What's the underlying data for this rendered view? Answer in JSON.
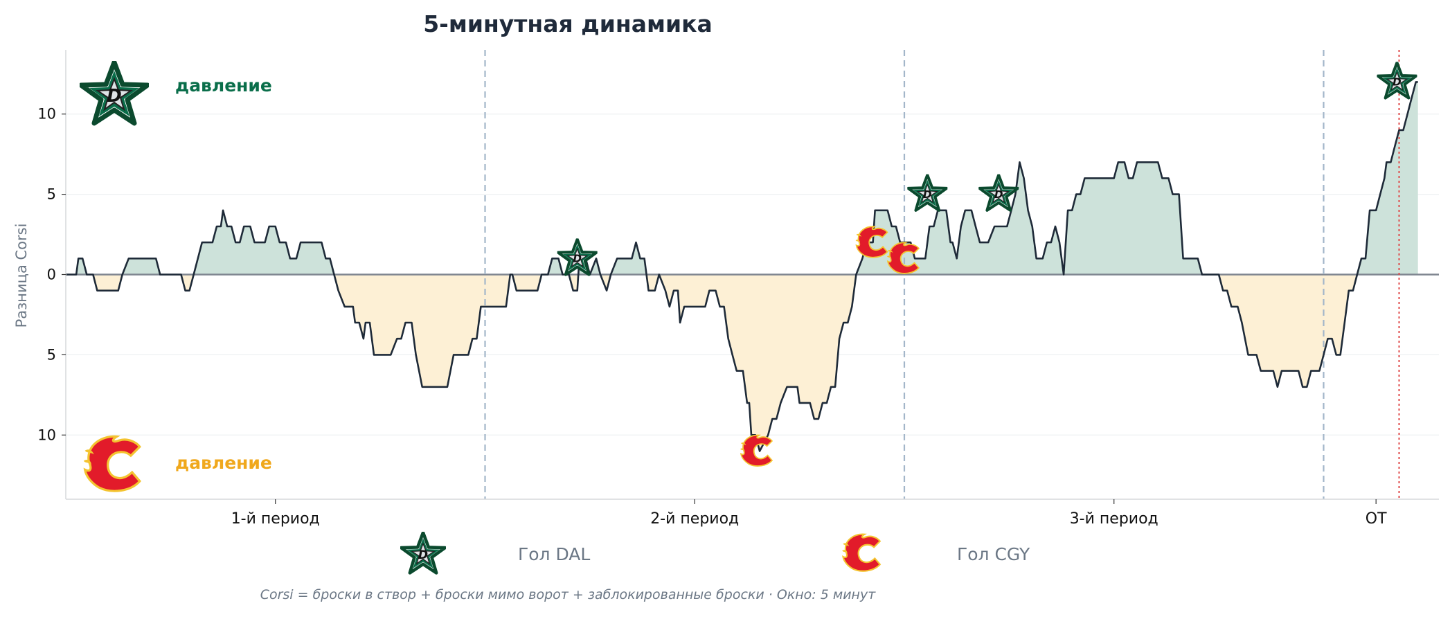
{
  "chart_data": {
    "type": "area",
    "title": "5-минутная динамика",
    "ylabel": "Разница Corsi",
    "ylim": [
      -14,
      14
    ],
    "yticks": [
      {
        "value": 10,
        "label": "10"
      },
      {
        "value": 5,
        "label": "5"
      },
      {
        "value": 0,
        "label": "0"
      },
      {
        "value": -5,
        "label": "5"
      },
      {
        "value": -10,
        "label": "10"
      }
    ],
    "xlim": [
      0,
      65.5
    ],
    "period_labels": [
      {
        "x": 10,
        "label": "1-й период"
      },
      {
        "x": 30,
        "label": "2-й период"
      },
      {
        "x": 50,
        "label": "3-й период"
      },
      {
        "x": 62.5,
        "label": "OT"
      }
    ],
    "period_separators": [
      20,
      40,
      60
    ],
    "game_end": 63.6,
    "grid": true,
    "positive_fill": "#cde2da",
    "negative_fill": "#fdf0d5",
    "line_color": "#1e2a38",
    "separator_color": "#a3b6c9",
    "end_line_color": "#e04848",
    "team_top": {
      "abbr": "DAL",
      "label": "давление",
      "color": "#0a6e4a",
      "logo": "dallas-stars-star-icon"
    },
    "team_bottom": {
      "abbr": "CGY",
      "label": "давление",
      "color": "#f0a81c",
      "logo": "calgary-flames-c-icon"
    },
    "series": [
      {
        "values": [
          [
            0.0,
            0
          ],
          [
            0.5,
            0
          ],
          [
            0.6,
            1
          ],
          [
            0.8,
            1
          ],
          [
            1.0,
            0
          ],
          [
            1.3,
            0
          ],
          [
            1.5,
            -1
          ],
          [
            2.5,
            -1
          ],
          [
            2.7,
            0
          ],
          [
            3.0,
            1
          ],
          [
            4.3,
            1
          ],
          [
            4.5,
            0
          ],
          [
            5.5,
            0
          ],
          [
            5.7,
            -1
          ],
          [
            5.9,
            -1
          ],
          [
            6.1,
            0
          ],
          [
            6.5,
            2
          ],
          [
            7.0,
            2
          ],
          [
            7.2,
            3
          ],
          [
            7.4,
            3
          ],
          [
            7.5,
            4
          ],
          [
            7.7,
            3
          ],
          [
            7.9,
            3
          ],
          [
            8.1,
            2
          ],
          [
            8.3,
            2
          ],
          [
            8.5,
            3
          ],
          [
            8.8,
            3
          ],
          [
            9.0,
            2
          ],
          [
            9.5,
            2
          ],
          [
            9.7,
            3
          ],
          [
            10.0,
            3
          ],
          [
            10.2,
            2
          ],
          [
            10.5,
            2
          ],
          [
            10.7,
            1
          ],
          [
            11.0,
            1
          ],
          [
            11.2,
            2
          ],
          [
            12.2,
            2
          ],
          [
            12.4,
            1
          ],
          [
            12.6,
            1
          ],
          [
            12.8,
            0
          ],
          [
            13.0,
            -1
          ],
          [
            13.3,
            -2
          ],
          [
            13.7,
            -2
          ],
          [
            13.8,
            -3
          ],
          [
            14.0,
            -3
          ],
          [
            14.2,
            -4
          ],
          [
            14.3,
            -3
          ],
          [
            14.5,
            -3
          ],
          [
            14.7,
            -5
          ],
          [
            15.5,
            -5
          ],
          [
            15.8,
            -4
          ],
          [
            16.0,
            -4
          ],
          [
            16.2,
            -3
          ],
          [
            16.5,
            -3
          ],
          [
            16.7,
            -5
          ],
          [
            17.0,
            -7
          ],
          [
            18.2,
            -7
          ],
          [
            18.5,
            -5
          ],
          [
            19.2,
            -5
          ],
          [
            19.4,
            -4
          ],
          [
            19.6,
            -4
          ],
          [
            19.8,
            -2
          ],
          [
            21.0,
            -2
          ],
          [
            21.2,
            0
          ],
          [
            21.3,
            0
          ],
          [
            21.5,
            -1
          ],
          [
            22.5,
            -1
          ],
          [
            22.7,
            0
          ],
          [
            23.0,
            0
          ],
          [
            23.2,
            1
          ],
          [
            23.5,
            1
          ],
          [
            23.7,
            0
          ],
          [
            24.0,
            0
          ],
          [
            24.2,
            -1
          ],
          [
            24.4,
            -1
          ],
          [
            24.5,
            1
          ],
          [
            24.8,
            1
          ],
          [
            25.0,
            0
          ],
          [
            25.3,
            1
          ],
          [
            25.5,
            0
          ],
          [
            25.8,
            -1
          ],
          [
            26.0,
            0
          ],
          [
            26.3,
            1
          ],
          [
            27.0,
            1
          ],
          [
            27.2,
            2
          ],
          [
            27.4,
            1
          ],
          [
            27.6,
            1
          ],
          [
            27.8,
            -1
          ],
          [
            28.1,
            -1
          ],
          [
            28.3,
            0
          ],
          [
            28.6,
            -1
          ],
          [
            28.8,
            -2
          ],
          [
            29.0,
            -1
          ],
          [
            29.2,
            -1
          ],
          [
            29.3,
            -3
          ],
          [
            29.5,
            -2
          ],
          [
            30.5,
            -2
          ],
          [
            30.7,
            -1
          ],
          [
            31.0,
            -1
          ],
          [
            31.2,
            -2
          ],
          [
            31.4,
            -2
          ],
          [
            31.6,
            -4
          ],
          [
            31.8,
            -5
          ],
          [
            32.0,
            -6
          ],
          [
            32.3,
            -6
          ],
          [
            32.5,
            -8
          ],
          [
            32.6,
            -8
          ],
          [
            32.7,
            -10
          ],
          [
            32.9,
            -10
          ],
          [
            33.1,
            -11
          ],
          [
            33.5,
            -10
          ],
          [
            33.7,
            -9
          ],
          [
            33.9,
            -9
          ],
          [
            34.1,
            -8
          ],
          [
            34.4,
            -7
          ],
          [
            34.9,
            -7
          ],
          [
            35.0,
            -8
          ],
          [
            35.5,
            -8
          ],
          [
            35.7,
            -9
          ],
          [
            35.9,
            -9
          ],
          [
            36.1,
            -8
          ],
          [
            36.3,
            -8
          ],
          [
            36.5,
            -7
          ],
          [
            36.7,
            -7
          ],
          [
            36.9,
            -4
          ],
          [
            37.1,
            -3
          ],
          [
            37.3,
            -3
          ],
          [
            37.5,
            -2
          ],
          [
            37.7,
            0
          ],
          [
            38.0,
            1
          ],
          [
            38.2,
            2
          ],
          [
            38.5,
            2
          ],
          [
            38.6,
            4
          ],
          [
            39.2,
            4
          ],
          [
            39.4,
            3
          ],
          [
            39.6,
            3
          ],
          [
            39.8,
            2
          ],
          [
            40.3,
            2
          ],
          [
            40.5,
            1
          ],
          [
            41.0,
            1
          ],
          [
            41.2,
            3
          ],
          [
            41.4,
            3
          ],
          [
            41.6,
            4
          ],
          [
            42.0,
            4
          ],
          [
            42.2,
            2
          ],
          [
            42.3,
            2
          ],
          [
            42.5,
            1
          ],
          [
            42.7,
            3
          ],
          [
            42.9,
            4
          ],
          [
            43.2,
            4
          ],
          [
            43.4,
            3
          ],
          [
            43.6,
            2
          ],
          [
            44.0,
            2
          ],
          [
            44.3,
            3
          ],
          [
            44.9,
            3
          ],
          [
            45.1,
            4
          ],
          [
            45.3,
            5
          ],
          [
            45.5,
            7
          ],
          [
            45.7,
            6
          ],
          [
            45.9,
            4
          ],
          [
            46.1,
            3
          ],
          [
            46.3,
            1
          ],
          [
            46.6,
            1
          ],
          [
            46.8,
            2
          ],
          [
            47.0,
            2
          ],
          [
            47.2,
            3
          ],
          [
            47.4,
            2
          ],
          [
            47.6,
            0
          ],
          [
            47.8,
            4
          ],
          [
            48.0,
            4
          ],
          [
            48.2,
            5
          ],
          [
            48.4,
            5
          ],
          [
            48.6,
            6
          ],
          [
            50.0,
            6
          ],
          [
            50.2,
            7
          ],
          [
            50.5,
            7
          ],
          [
            50.7,
            6
          ],
          [
            50.9,
            6
          ],
          [
            51.1,
            7
          ],
          [
            52.1,
            7
          ],
          [
            52.3,
            6
          ],
          [
            52.6,
            6
          ],
          [
            52.8,
            5
          ],
          [
            53.1,
            5
          ],
          [
            53.3,
            1
          ],
          [
            54.0,
            1
          ],
          [
            54.2,
            0
          ],
          [
            55.0,
            0
          ],
          [
            55.2,
            -1
          ],
          [
            55.4,
            -1
          ],
          [
            55.6,
            -2
          ],
          [
            55.9,
            -2
          ],
          [
            56.1,
            -3
          ],
          [
            56.4,
            -5
          ],
          [
            56.8,
            -5
          ],
          [
            57.0,
            -6
          ],
          [
            57.6,
            -6
          ],
          [
            57.8,
            -7
          ],
          [
            58.0,
            -6
          ],
          [
            58.8,
            -6
          ],
          [
            59.0,
            -7
          ],
          [
            59.2,
            -7
          ],
          [
            59.4,
            -6
          ],
          [
            59.8,
            -6
          ],
          [
            60.0,
            -5
          ],
          [
            60.2,
            -4
          ],
          [
            60.4,
            -4
          ],
          [
            60.6,
            -5
          ],
          [
            60.8,
            -5
          ],
          [
            61.0,
            -3
          ],
          [
            61.2,
            -1
          ],
          [
            61.4,
            -1
          ],
          [
            61.6,
            0
          ],
          [
            61.8,
            1
          ],
          [
            62.0,
            1
          ],
          [
            62.2,
            4
          ],
          [
            62.5,
            4
          ],
          [
            62.7,
            5
          ],
          [
            62.9,
            6
          ],
          [
            63.0,
            7
          ],
          [
            63.2,
            7
          ],
          [
            63.4,
            8
          ],
          [
            63.6,
            9
          ],
          [
            63.8,
            9
          ],
          [
            64.0,
            10
          ],
          [
            64.2,
            11
          ],
          [
            64.4,
            12
          ],
          [
            64.5,
            12
          ]
        ]
      }
    ],
    "goals": [
      {
        "team": "DAL",
        "x": 24.4,
        "y": 1
      },
      {
        "team": "CGY",
        "x": 33.0,
        "y": -11
      },
      {
        "team": "CGY",
        "x": 38.5,
        "y": 2
      },
      {
        "team": "CGY",
        "x": 40.0,
        "y": 1
      },
      {
        "team": "DAL",
        "x": 41.1,
        "y": 5
      },
      {
        "team": "DAL",
        "x": 44.5,
        "y": 5
      },
      {
        "team": "DAL",
        "x": 63.5,
        "y": 12
      }
    ],
    "legend": [
      {
        "team": "DAL",
        "label": "Гол DAL"
      },
      {
        "team": "CGY",
        "label": "Гол CGY"
      }
    ],
    "footnote": "Corsi = броски в створ + броски мимо ворот + заблокированные броски · Окно: 5 минут"
  }
}
